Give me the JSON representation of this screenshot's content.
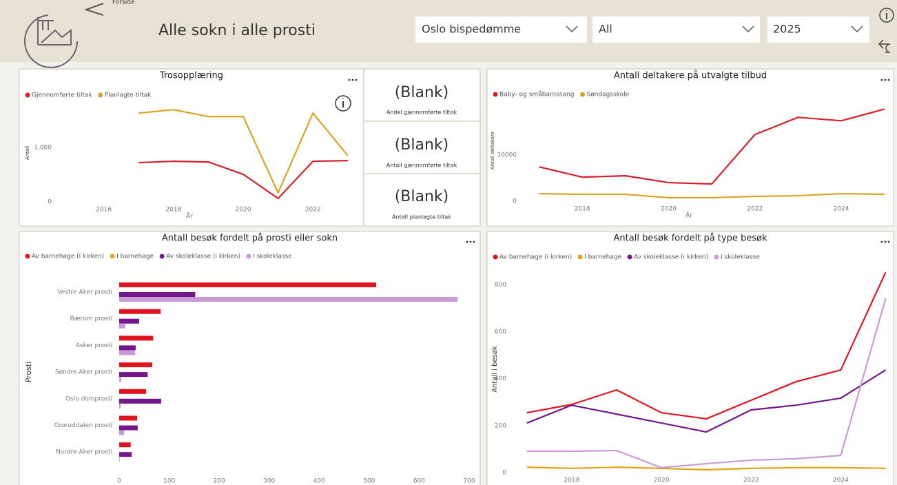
{
  "header": {
    "back_label": "Forside",
    "title": "Alle sokn i alle prosti",
    "filters": [
      "Oslo bispedømme",
      "All",
      "2025"
    ]
  },
  "cards": [
    {
      "value": "(Blank)",
      "label": "Andel gjennomførte tiltak"
    },
    {
      "value": "(Blank)",
      "label": "Antall gjennomførte tiltak"
    },
    {
      "value": "(Blank)",
      "label": "Antall planlagte tiltak"
    }
  ],
  "chart_data": [
    {
      "type": "line",
      "title": "Trosopplæring",
      "ylabel": "Antall",
      "xlabel": "År",
      "x": [
        2017,
        2018,
        2019,
        2020,
        2021,
        2022,
        2023
      ],
      "series": [
        {
          "name": "Gjennomførte tiltak",
          "color": "#d62027",
          "values": [
            722,
            747,
            734,
            506,
            63,
            747,
            759
          ]
        },
        {
          "name": "Planlagte tiltak",
          "color": "#d9a520",
          "values": [
            1633,
            1696,
            1570,
            1570,
            165,
            1633,
            848
          ]
        }
      ],
      "xlim": [
        2014.9,
        2023.2
      ],
      "xticks": [
        2016,
        2018,
        2020,
        2022
      ],
      "ylim": [
        0,
        1800
      ],
      "yticks": [
        0,
        {
          "value": 1000,
          "label": "1,000"
        }
      ],
      "grid": false
    },
    {
      "type": "line",
      "title": "Antall deltakere på utvalgte tilbud",
      "ylabel": "Antall deltakere",
      "xlabel": "År",
      "x": [
        2017,
        2018,
        2019,
        2020,
        2021,
        2022,
        2023,
        2024,
        2025
      ],
      "series": [
        {
          "name": "Baby- og småbarnssang",
          "color": "#d62027",
          "values": [
            7460,
            5220,
            5520,
            4030,
            3730,
            14480,
            18210,
            17460,
            20000
          ]
        },
        {
          "name": "Søndagsskole",
          "color": "#d9a520",
          "values": [
            1640,
            1490,
            1490,
            750,
            750,
            1040,
            1190,
            1640,
            1490
          ]
        }
      ],
      "xlim": [
        2016.8,
        2025.1
      ],
      "xticks": [
        2018,
        2020,
        2022,
        2024
      ],
      "ylim": [
        0,
        22000
      ],
      "yticks": [
        0,
        10000
      ],
      "grid": false
    },
    {
      "type": "bar",
      "orientation": "horizontal",
      "title": "Antall besøk fordelt på prosti eller sokn",
      "ylabel": "Prosti",
      "categories": [
        "Vestre Aker prosti",
        "Bærum prosti",
        "Asker prosti",
        "Søndre Aker prosti",
        "Oslo domprosti",
        "Groruddalen prosti",
        "Nordre Aker prosti"
      ],
      "series": [
        {
          "name": "Av barnehage (i kirken)",
          "color": "#e0141e",
          "values": [
            514,
            83,
            68,
            66,
            54,
            36,
            23
          ]
        },
        {
          "name": "I barnehage",
          "color": "#e3a41a",
          "values": [
            0,
            0,
            0,
            0,
            0,
            0,
            0
          ]
        },
        {
          "name": "Av skoleklasse (i kirken)",
          "color": "#74168c",
          "values": [
            152,
            40,
            33,
            57,
            84,
            37,
            25
          ]
        },
        {
          "name": "I skoleklasse",
          "color": "#c99ad6",
          "values": [
            677,
            12,
            32,
            4,
            3,
            10,
            1
          ]
        }
      ],
      "xlim": [
        0,
        700
      ],
      "xticks": [
        0,
        100,
        200,
        300,
        400,
        500,
        600,
        700
      ],
      "grid": false
    },
    {
      "type": "line",
      "title": "Antall besøk fordelt på type besøk",
      "ylabel": "Antall i besøk",
      "x": [
        2017,
        2018,
        2019,
        2020,
        2021,
        2022,
        2023,
        2024,
        2025
      ],
      "series": [
        {
          "name": "Av barnehage (i kirken)",
          "color": "#e0141e",
          "values": [
            255,
            290,
            352,
            255,
            229,
            308,
            387,
            437,
            853
          ]
        },
        {
          "name": "I barnehage",
          "color": "#e3a41a",
          "values": [
            23,
            18,
            23,
            18,
            12,
            18,
            21,
            21,
            18
          ]
        },
        {
          "name": "Av skoleklasse (i kirken)",
          "color": "#74168c",
          "values": [
            211,
            287,
            249,
            211,
            173,
            267,
            287,
            317,
            437
          ]
        },
        {
          "name": "I skoleklasse",
          "color": "#c99ad6",
          "values": [
            91,
            91,
            94,
            21,
            38,
            53,
            59,
            73,
            742
          ]
        }
      ],
      "xlim": [
        2016.85,
        2025.1
      ],
      "xticks": [
        2018,
        2020,
        2022,
        2024
      ],
      "ylim": [
        0,
        880
      ],
      "yticks": [
        0,
        200,
        400,
        600,
        800
      ],
      "grid": false
    }
  ]
}
